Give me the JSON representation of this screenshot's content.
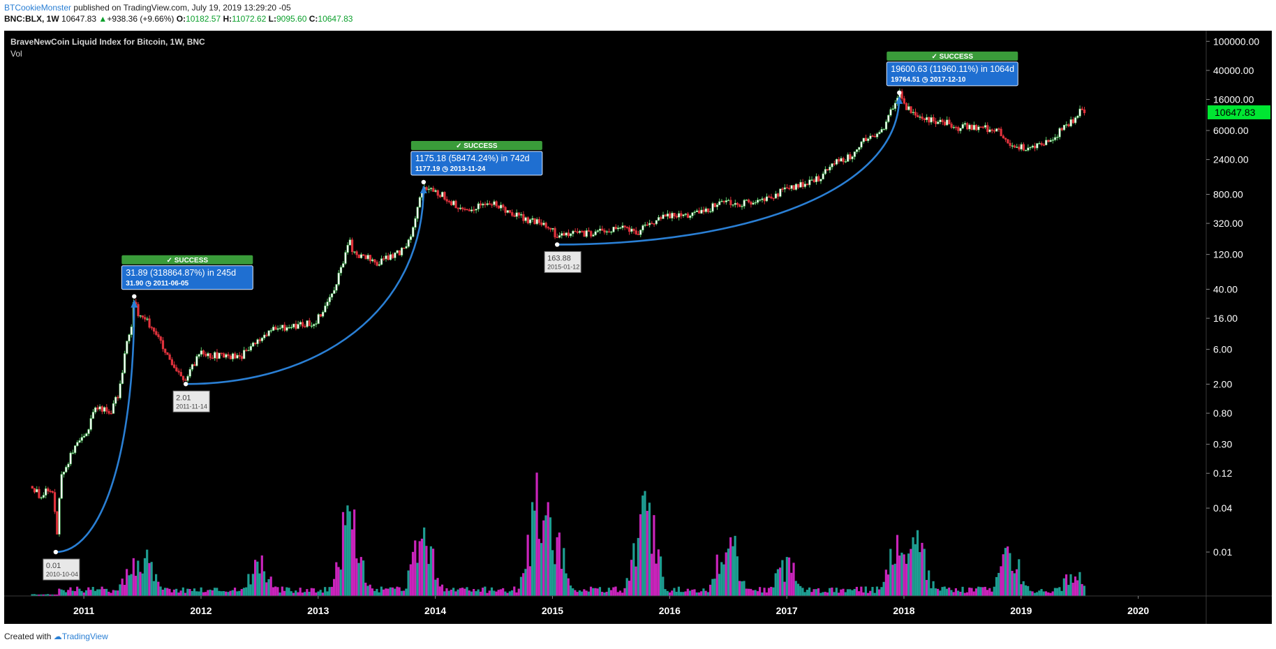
{
  "header": {
    "author": "BTCookieMonster",
    "published": "published on TradingView.com, July 19, 2019 13:29:20 -05"
  },
  "ticker": {
    "symbol": "BNC:BLX, 1W",
    "last": "10647.83",
    "change": "+938.36 (+9.66%)",
    "open_label": "O:",
    "open": "10182.57",
    "high_label": "H:",
    "high": "11072.62",
    "low_label": "L:",
    "low": "9095.60",
    "close_label": "C:",
    "close": "10647.83"
  },
  "legend": {
    "title": "BraveNewCoin Liquid Index for Bitcoin, 1W, BNC",
    "volume_label": "Vol"
  },
  "footer": {
    "created_with": "Created with",
    "brand": "TradingView"
  },
  "chart_data": {
    "type": "line",
    "y_scale": "log",
    "ylim": [
      0.0025,
      140000
    ],
    "xlim": [
      2010.32,
      2020.58
    ],
    "grid": false,
    "y_ticks": [
      {
        "value": 100000,
        "label": "100000.00"
      },
      {
        "value": 40000,
        "label": "40000.00"
      },
      {
        "value": 16000,
        "label": "16000.00"
      },
      {
        "value": 6000,
        "label": "6000.00"
      },
      {
        "value": 2400,
        "label": "2400.00"
      },
      {
        "value": 800,
        "label": "800.00"
      },
      {
        "value": 320,
        "label": "320.00"
      },
      {
        "value": 120,
        "label": "120.00"
      },
      {
        "value": 40,
        "label": "40.00"
      },
      {
        "value": 16,
        "label": "16.00"
      },
      {
        "value": 6,
        "label": "6.00"
      },
      {
        "value": 2,
        "label": "2.00"
      },
      {
        "value": 0.8,
        "label": "0.80"
      },
      {
        "value": 0.3,
        "label": "0.30"
      },
      {
        "value": 0.12,
        "label": "0.12"
      },
      {
        "value": 0.04,
        "label": "0.04"
      },
      {
        "value": 0.01,
        "label": "0.01"
      }
    ],
    "x_ticks": [
      {
        "value": 2011,
        "label": "2011"
      },
      {
        "value": 2012,
        "label": "2012"
      },
      {
        "value": 2013,
        "label": "2013"
      },
      {
        "value": 2014,
        "label": "2014"
      },
      {
        "value": 2015,
        "label": "2015"
      },
      {
        "value": 2016,
        "label": "2016"
      },
      {
        "value": 2017,
        "label": "2017"
      },
      {
        "value": 2018,
        "label": "2018"
      },
      {
        "value": 2019,
        "label": "2019"
      },
      {
        "value": 2020,
        "label": "2020"
      }
    ],
    "last_price": {
      "value": 10647.83,
      "label": "10647.83",
      "color": "#00e632"
    },
    "price_path": [
      [
        2010.55,
        0.08
      ],
      [
        2010.62,
        0.06
      ],
      [
        2010.68,
        0.07
      ],
      [
        2010.75,
        0.06
      ],
      [
        2010.76,
        0.01
      ],
      [
        2010.8,
        0.1
      ],
      [
        2010.88,
        0.2
      ],
      [
        2010.95,
        0.3
      ],
      [
        2011.02,
        0.4
      ],
      [
        2011.08,
        0.9
      ],
      [
        2011.15,
        0.95
      ],
      [
        2011.22,
        0.8
      ],
      [
        2011.3,
        1.5
      ],
      [
        2011.36,
        7
      ],
      [
        2011.4,
        10
      ],
      [
        2011.43,
        29
      ],
      [
        2011.47,
        18
      ],
      [
        2011.55,
        14
      ],
      [
        2011.62,
        10
      ],
      [
        2011.7,
        5
      ],
      [
        2011.78,
        3
      ],
      [
        2011.87,
        2.2
      ],
      [
        2011.93,
        3.5
      ],
      [
        2012.0,
        6
      ],
      [
        2012.08,
        5
      ],
      [
        2012.2,
        4.8
      ],
      [
        2012.35,
        5
      ],
      [
        2012.45,
        7
      ],
      [
        2012.6,
        11
      ],
      [
        2012.72,
        12
      ],
      [
        2012.85,
        13
      ],
      [
        2012.97,
        14
      ],
      [
        2013.1,
        30
      ],
      [
        2013.2,
        80
      ],
      [
        2013.27,
        180
      ],
      [
        2013.32,
        110
      ],
      [
        2013.4,
        115
      ],
      [
        2013.5,
        90
      ],
      [
        2013.6,
        110
      ],
      [
        2013.7,
        130
      ],
      [
        2013.78,
        200
      ],
      [
        2013.87,
        700
      ],
      [
        2013.9,
        1100
      ],
      [
        2013.95,
        900
      ],
      [
        2014.05,
        800
      ],
      [
        2014.15,
        600
      ],
      [
        2014.25,
        450
      ],
      [
        2014.4,
        600
      ],
      [
        2014.5,
        580
      ],
      [
        2014.6,
        500
      ],
      [
        2014.7,
        420
      ],
      [
        2014.8,
        340
      ],
      [
        2014.9,
        330
      ],
      [
        2015.0,
        250
      ],
      [
        2015.04,
        200
      ],
      [
        2015.1,
        240
      ],
      [
        2015.25,
        230
      ],
      [
        2015.45,
        250
      ],
      [
        2015.6,
        280
      ],
      [
        2015.72,
        240
      ],
      [
        2015.85,
        330
      ],
      [
        2016.0,
        420
      ],
      [
        2016.2,
        430
      ],
      [
        2016.35,
        520
      ],
      [
        2016.45,
        680
      ],
      [
        2016.55,
        600
      ],
      [
        2016.7,
        610
      ],
      [
        2016.85,
        720
      ],
      [
        2017.0,
        950
      ],
      [
        2017.15,
        1100
      ],
      [
        2017.3,
        1400
      ],
      [
        2017.42,
        2400
      ],
      [
        2017.55,
        2600
      ],
      [
        2017.65,
        4300
      ],
      [
        2017.75,
        5000
      ],
      [
        2017.85,
        7500
      ],
      [
        2017.93,
        16000
      ],
      [
        2017.96,
        19600
      ],
      [
        2018.02,
        13000
      ],
      [
        2018.1,
        9000
      ],
      [
        2018.2,
        8500
      ],
      [
        2018.35,
        8000
      ],
      [
        2018.45,
        6500
      ],
      [
        2018.55,
        7000
      ],
      [
        2018.65,
        6500
      ],
      [
        2018.8,
        6300
      ],
      [
        2018.88,
        4000
      ],
      [
        2018.95,
        3600
      ],
      [
        2019.05,
        3500
      ],
      [
        2019.2,
        4000
      ],
      [
        2019.3,
        5200
      ],
      [
        2019.4,
        7500
      ],
      [
        2019.45,
        8500
      ],
      [
        2019.5,
        11000
      ],
      [
        2019.55,
        10647.83
      ]
    ],
    "volume_peaks": [
      [
        2010.8,
        0.05
      ],
      [
        2011.4,
        0.22
      ],
      [
        2011.5,
        0.38
      ],
      [
        2012.5,
        0.3
      ],
      [
        2013.27,
        0.68
      ],
      [
        2013.9,
        0.52
      ],
      [
        2014.9,
        0.93
      ],
      [
        2015.0,
        0.6
      ],
      [
        2015.8,
        0.76
      ],
      [
        2016.5,
        0.52
      ],
      [
        2017.0,
        0.28
      ],
      [
        2017.95,
        0.4
      ],
      [
        2018.1,
        0.48
      ],
      [
        2018.9,
        0.38
      ],
      [
        2019.45,
        0.2
      ]
    ],
    "annotations": [
      {
        "type": "swing",
        "start": {
          "x": 2010.76,
          "y": 0.01,
          "price": "0.01",
          "date": "2010-10-04"
        },
        "end": {
          "x": 2011.43,
          "y": 31.89,
          "price": "31.90",
          "date": "2011-06-05"
        },
        "status": "SUCCESS",
        "summary": "31.89 (318864.87%) in 245d"
      },
      {
        "type": "swing",
        "start": {
          "x": 2011.87,
          "y": 2.01,
          "price": "2.01",
          "date": "2011-11-14"
        },
        "end": {
          "x": 2013.9,
          "y": 1177.19,
          "price": "1177.19",
          "date": "2013-11-24"
        },
        "status": "SUCCESS",
        "summary": "1175.18 (58474.24%) in 742d"
      },
      {
        "type": "swing",
        "start": {
          "x": 2015.04,
          "y": 163.88,
          "price": "163.88",
          "date": "2015-01-12"
        },
        "end": {
          "x": 2017.96,
          "y": 19764.51,
          "price": "19764.51",
          "date": "2017-12-10"
        },
        "status": "SUCCESS",
        "summary": "19600.63 (11960.11%) in 1064d"
      }
    ],
    "colors": {
      "background": "#000000",
      "up": "#5ec96b",
      "down": "#e0323c",
      "vol_teal": "#20a79a",
      "vol_magenta": "#d426c5",
      "arc": "#2a7fd4",
      "box": "#1f6fd1",
      "success": "#3a9c3a"
    }
  }
}
